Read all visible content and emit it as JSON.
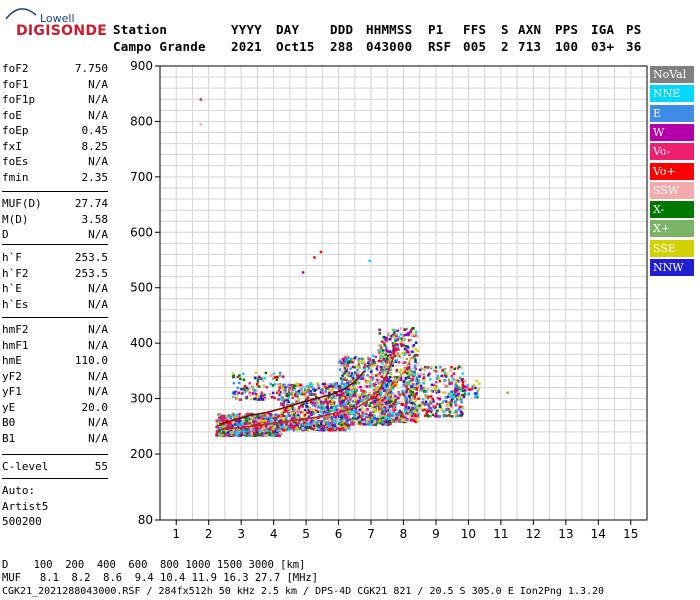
{
  "logo": {
    "top": "Lowell",
    "main": "DIGISONDE"
  },
  "header": {
    "labels": [
      "Station",
      "YYYY",
      "DAY",
      "DDD",
      "HHMMSS",
      "P1",
      "FFS",
      "S",
      "AXN",
      "PPS",
      "IGA",
      "PS"
    ],
    "values": [
      "Campo Grande",
      "2021",
      "Oct15",
      "288",
      "043000",
      "RSF",
      "005",
      "2",
      "713",
      "100",
      "03+",
      "36"
    ]
  },
  "params": {
    "group1": [
      {
        "k": "foF2",
        "v": "7.750"
      },
      {
        "k": "foF1",
        "v": "N/A"
      },
      {
        "k": "foF1p",
        "v": "N/A"
      },
      {
        "k": "foE",
        "v": "N/A"
      },
      {
        "k": "foEp",
        "v": "0.45"
      },
      {
        "k": "fxI",
        "v": "8.25"
      },
      {
        "k": "foEs",
        "v": "N/A"
      },
      {
        "k": "fmin",
        "v": "2.35"
      }
    ],
    "group2": [
      {
        "k": "MUF(D)",
        "v": "27.74"
      },
      {
        "k": "M(D)",
        "v": "3.58"
      },
      {
        "k": "D",
        "v": "N/A"
      }
    ],
    "group3": [
      {
        "k": "h`F",
        "v": "253.5"
      },
      {
        "k": "h`F2",
        "v": "253.5"
      },
      {
        "k": "h`E",
        "v": "N/A"
      },
      {
        "k": "h`Es",
        "v": "N/A"
      }
    ],
    "group4": [
      {
        "k": "hmF2",
        "v": "N/A"
      },
      {
        "k": "hmF1",
        "v": "N/A"
      },
      {
        "k": "hmE",
        "v": "110.0"
      },
      {
        "k": "yF2",
        "v": "N/A"
      },
      {
        "k": "yF1",
        "v": "N/A"
      },
      {
        "k": "yE",
        "v": "20.0"
      },
      {
        "k": "B0",
        "v": "N/A"
      },
      {
        "k": "B1",
        "v": "N/A"
      }
    ],
    "group5": [
      {
        "k": "C-level",
        "v": "55"
      }
    ],
    "auto": [
      "Auto:",
      "Artist5",
      "500200"
    ]
  },
  "legend": [
    {
      "label": "NoVal",
      "color": "#808080"
    },
    {
      "label": "NNE",
      "color": "#00d8ff"
    },
    {
      "label": "E",
      "color": "#3c8ce8"
    },
    {
      "label": "W",
      "color": "#b400aa"
    },
    {
      "label": "Vo-",
      "color": "#f01e6e"
    },
    {
      "label": "Vo+",
      "color": "#ff0000"
    },
    {
      "label": "SSW",
      "color": "#f4aaaa"
    },
    {
      "label": "X-",
      "color": "#007800"
    },
    {
      "label": "X+",
      "color": "#78b464"
    },
    {
      "label": "SSE",
      "color": "#d2d200"
    },
    {
      "label": "NNW",
      "color": "#1e1ed2"
    }
  ],
  "bottom": {
    "line1": "D    100  200  400  600  800 1000 1500 3000 [km]",
    "line2": "MUF   8.1  8.2  8.6  9.4 10.4 11.9 16.3 27.7 [MHz]",
    "line3": "CGK21_2021288043000.RSF / 284fx512h 50 kHz 2.5 km / DPS-4D CGK21 821 / 20.5 S 305.0 E Ion2Png 1.3.20"
  },
  "chart_data": {
    "type": "scatter",
    "title": "",
    "xlabel": "",
    "ylabel": "",
    "xlim": [
      0.5,
      15.5
    ],
    "ylim": [
      80,
      900
    ],
    "xticks": [
      1,
      2,
      3,
      4,
      5,
      6,
      7,
      8,
      9,
      10,
      11,
      12,
      13,
      14,
      15
    ],
    "yticks": [
      80,
      200,
      300,
      400,
      500,
      600,
      700,
      800,
      900
    ],
    "grid": true,
    "traces": [
      {
        "name": "",
        "color": "#8b0000",
        "x": [
          2.35,
          2.8,
          3.3,
          3.8,
          4.3,
          4.8,
          5.3,
          5.8,
          6.2,
          6.5,
          6.8
        ],
        "y": [
          254,
          262,
          270,
          275,
          283,
          292,
          300,
          308,
          318,
          330,
          350
        ]
      },
      {
        "name": "",
        "color": "#cc2222",
        "x": [
          2.4,
          3.0,
          3.6,
          4.2,
          4.8,
          5.4,
          6.0,
          6.6,
          7.0,
          7.3,
          7.5,
          7.7,
          7.75
        ],
        "y": [
          245,
          248,
          252,
          257,
          262,
          267,
          275,
          285,
          300,
          320,
          345,
          375,
          400
        ]
      },
      {
        "name": "",
        "color": "#e69b1e",
        "x": [
          7.0,
          7.3,
          7.6,
          7.9,
          8.1,
          8.25
        ],
        "y": [
          282,
          298,
          318,
          340,
          358,
          375
        ]
      }
    ],
    "outliers": [
      {
        "x": 1.75,
        "y": 840,
        "color": "#f01e6e"
      },
      {
        "x": 1.75,
        "y": 795,
        "color": "#f4aaaa"
      },
      {
        "x": 5.45,
        "y": 565,
        "color": "#ff0000"
      },
      {
        "x": 5.25,
        "y": 555,
        "color": "#ff0000"
      },
      {
        "x": 4.9,
        "y": 528,
        "color": "#b400aa"
      },
      {
        "x": 6.95,
        "y": 549,
        "color": "#00d8ff"
      },
      {
        "x": 11.2,
        "y": 311,
        "color": "#78b464"
      }
    ],
    "clouds": [
      {
        "x": [
          2.2,
          4.2
        ],
        "y": [
          235,
          275
        ],
        "n": 700
      },
      {
        "x": [
          4.2,
          6.3
        ],
        "y": [
          245,
          330
        ],
        "n": 800
      },
      {
        "x": [
          6.0,
          7.6
        ],
        "y": [
          255,
          380
        ],
        "n": 700
      },
      {
        "x": [
          7.2,
          8.4
        ],
        "y": [
          260,
          430
        ],
        "n": 500
      },
      {
        "x": [
          8.0,
          9.8
        ],
        "y": [
          270,
          360
        ],
        "n": 350
      },
      {
        "x": [
          2.7,
          4.3
        ],
        "y": [
          300,
          350
        ],
        "n": 120
      },
      {
        "x": [
          9.5,
          10.3
        ],
        "y": [
          305,
          335
        ],
        "n": 50
      }
    ]
  }
}
